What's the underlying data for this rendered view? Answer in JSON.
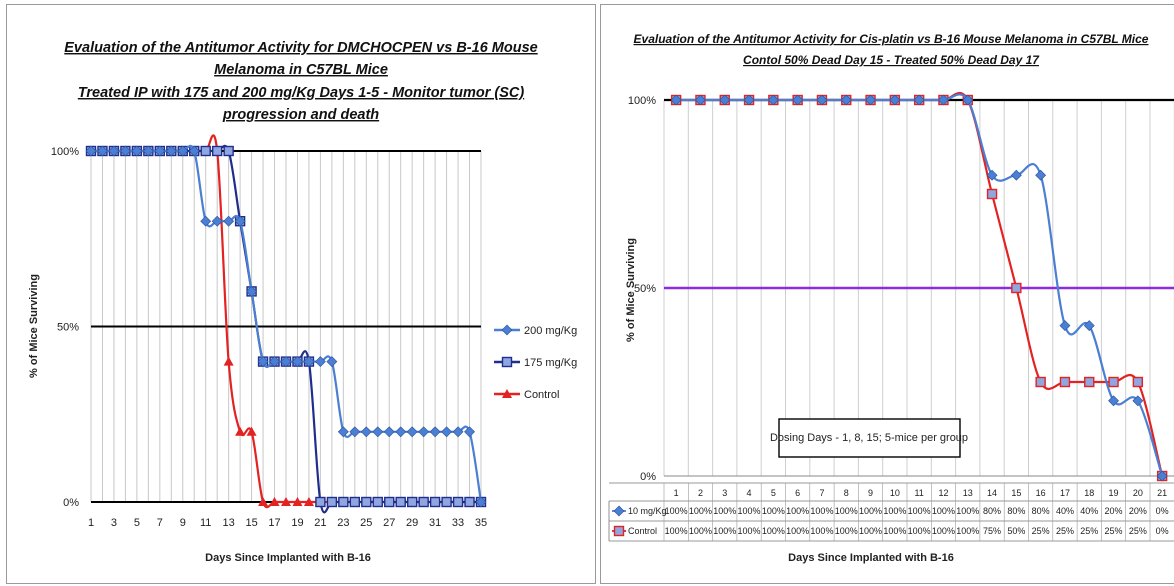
{
  "chart_data": [
    {
      "type": "line",
      "title_lines": [
        "Evaluation of the Antitumor Activity for DMCHOCPEN vs B-16 Mouse",
        "Melanoma in C57BL Mice",
        "Treated IP with 175 and  200 mg/Kg Days 1-5 - Monitor tumor (SC)",
        "progression and death"
      ],
      "xlabel": "Days Since Implanted with B-16",
      "ylabel": "% of Mice Surviving",
      "y_ticks": [
        "0%",
        "50%",
        "100%"
      ],
      "x_tick_labels": [
        "1",
        "3",
        "5",
        "7",
        "9",
        "11",
        "13",
        "15",
        "17",
        "19",
        "21",
        "23",
        "25",
        "27",
        "29",
        "31",
        "33",
        "35"
      ],
      "x": [
        1,
        2,
        3,
        4,
        5,
        6,
        7,
        8,
        9,
        10,
        11,
        12,
        13,
        14,
        15,
        16,
        17,
        18,
        19,
        20,
        21,
        22,
        23,
        24,
        25,
        26,
        27,
        28,
        29,
        30,
        31,
        32,
        33,
        34,
        35
      ],
      "ylim": [
        0,
        100
      ],
      "xlim": [
        1,
        35
      ],
      "grid": "vertical lines at each day; bold reference lines at 0%, 50%, 100%",
      "legend_position": "right",
      "series": [
        {
          "name": "200 mg/Kg",
          "color": "#4a7fd4",
          "marker": "diamond",
          "values": [
            100,
            100,
            100,
            100,
            100,
            100,
            100,
            100,
            100,
            100,
            80,
            80,
            80,
            80,
            60,
            40,
            40,
            40,
            40,
            40,
            40,
            40,
            20,
            20,
            20,
            20,
            20,
            20,
            20,
            20,
            20,
            20,
            20,
            20,
            0
          ]
        },
        {
          "name": "175 mg/Kg",
          "color": "#1f2e8c",
          "marker": "square",
          "values": [
            100,
            100,
            100,
            100,
            100,
            100,
            100,
            100,
            100,
            100,
            100,
            100,
            100,
            80,
            60,
            40,
            40,
            40,
            40,
            40,
            0,
            0,
            0,
            0,
            0,
            0,
            0,
            0,
            0,
            0,
            0,
            0,
            0,
            0,
            0
          ]
        },
        {
          "name": "Control",
          "color": "#e32222",
          "marker": "triangle",
          "values": [
            100,
            100,
            100,
            100,
            100,
            100,
            100,
            100,
            100,
            100,
            100,
            100,
            40,
            20,
            20,
            0,
            0,
            0,
            0,
            0,
            0,
            0,
            0,
            0,
            0,
            0,
            0,
            0,
            0,
            0,
            0,
            0,
            0,
            0,
            0
          ]
        }
      ]
    },
    {
      "type": "line",
      "title_lines": [
        "Evaluation of the Antitumor Activity for Cis-platin vs B-16 Mouse Melanoma in C57BL Mice",
        "Contol 50% Dead Day 15  - Treated 50% Dead Day 17"
      ],
      "xlabel": "Days Since Implanted with B-16",
      "ylabel": "% of Mice Surviving",
      "y_ticks": [
        "0%",
        "50%",
        "100%"
      ],
      "categories": [
        "1",
        "2",
        "3",
        "4",
        "5",
        "6",
        "7",
        "8",
        "9",
        "10",
        "11",
        "12",
        "13",
        "14",
        "15",
        "16",
        "17",
        "18",
        "19",
        "20",
        "21"
      ],
      "ylim": [
        0,
        100
      ],
      "grid": "vertical lines at each day; reference lines at 50% and 100%",
      "annotation": "Dosing  Days - 1, 8, 15; 5-mice per group",
      "data_table": true,
      "series": [
        {
          "name": "10 mg/Kg",
          "color": "#4a7fd4",
          "marker": "diamond",
          "values": [
            100,
            100,
            100,
            100,
            100,
            100,
            100,
            100,
            100,
            100,
            100,
            100,
            100,
            80,
            80,
            80,
            40,
            40,
            20,
            20,
            0
          ],
          "labels": [
            "100%",
            "100%",
            "100%",
            "100%",
            "100%",
            "100%",
            "100%",
            "100%",
            "100%",
            "100%",
            "100%",
            "100%",
            "100%",
            "80%",
            "80%",
            "80%",
            "40%",
            "40%",
            "20%",
            "20%",
            "0%"
          ]
        },
        {
          "name": "Control",
          "color": "#e32222",
          "marker": "square",
          "values": [
            100,
            100,
            100,
            100,
            100,
            100,
            100,
            100,
            100,
            100,
            100,
            100,
            100,
            75,
            50,
            25,
            25,
            25,
            25,
            25,
            0
          ],
          "labels": [
            "100%",
            "100%",
            "100%",
            "100%",
            "100%",
            "100%",
            "100%",
            "100%",
            "100%",
            "100%",
            "100%",
            "100%",
            "100%",
            "75%",
            "50%",
            "25%",
            "25%",
            "25%",
            "25%",
            "25%",
            "0%"
          ]
        }
      ]
    }
  ]
}
